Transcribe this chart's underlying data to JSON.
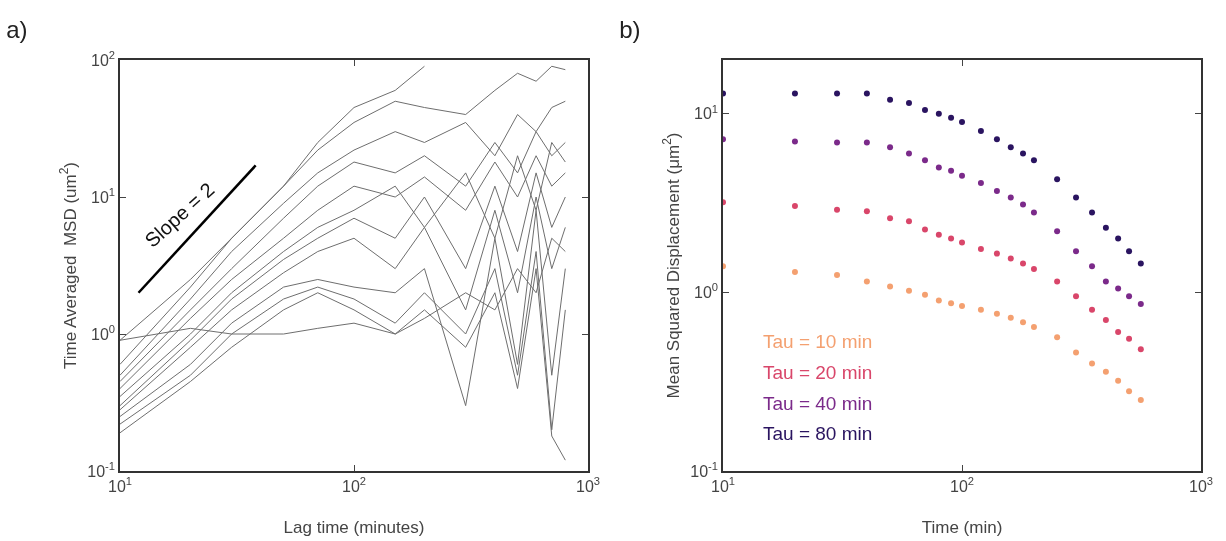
{
  "chart_data": [
    {
      "type": "line",
      "title": "a)",
      "xlabel": "Lag time (minutes)",
      "ylabel": "Time Averaged  MSD (um$^{2}$)",
      "log": "xy",
      "xlim": [
        10,
        1000
      ],
      "ylim": [
        0.1,
        100
      ],
      "xticks": [
        {
          "value": 10,
          "label": "10$^{1}$"
        },
        {
          "value": 100,
          "label": "10$^{2}$"
        },
        {
          "value": 1000,
          "label": "10$^{3}$"
        }
      ],
      "yticks": [
        {
          "value": 0.1,
          "label": "10$^{-1}$"
        },
        {
          "value": 1,
          "label": "10$^{0}$"
        },
        {
          "value": 10,
          "label": "10$^{1}$"
        },
        {
          "value": 100,
          "label": "10$^{2}$"
        }
      ],
      "grid": false,
      "legend": false,
      "marker": "none",
      "line_style": "solid",
      "x": [
        10,
        20,
        30,
        50,
        70,
        100,
        150,
        200,
        300,
        400,
        500,
        600,
        700,
        800
      ],
      "series": [
        {
          "color": "#6e6e6e",
          "values": [
            0.9,
            2.5,
            5,
            12,
            25,
            45,
            60,
            90,
            null,
            null,
            null,
            null,
            null,
            null
          ]
        },
        {
          "color": "#6e6e6e",
          "values": [
            0.6,
            2.2,
            5,
            12,
            22,
            35,
            50,
            45,
            40,
            60,
            80,
            70,
            90,
            85
          ]
        },
        {
          "color": "#6e6e6e",
          "values": [
            0.5,
            1.8,
            4,
            9,
            15,
            22,
            30,
            25,
            35,
            20,
            40,
            30,
            45,
            50
          ]
        },
        {
          "color": "#6e6e6e",
          "values": [
            0.45,
            1.5,
            3,
            7,
            12,
            18,
            15,
            20,
            12,
            25,
            15,
            30,
            20,
            25
          ]
        },
        {
          "color": "#6e6e6e",
          "values": [
            0.4,
            1.3,
            2.5,
            5,
            8,
            12,
            10,
            14,
            8,
            18,
            10,
            20,
            12,
            15
          ]
        },
        {
          "color": "#6e6e6e",
          "values": [
            0.35,
            1.0,
            2.0,
            4,
            6,
            8,
            12,
            6,
            15,
            5,
            20,
            8,
            25,
            18
          ]
        },
        {
          "color": "#6e6e6e",
          "values": [
            0.3,
            0.9,
            1.8,
            3.5,
            5,
            7,
            5,
            10,
            3,
            12,
            4,
            15,
            6,
            10
          ]
        },
        {
          "color": "#6e6e6e",
          "values": [
            0.28,
            0.8,
            1.5,
            2.8,
            4,
            5,
            3,
            6,
            1.5,
            8,
            2,
            10,
            3,
            6
          ]
        },
        {
          "color": "#6e6e6e",
          "values": [
            0.25,
            0.6,
            1.2,
            2.2,
            2.5,
            2.2,
            2,
            3,
            0.3,
            5,
            0.6,
            8,
            0.5,
            3
          ]
        },
        {
          "color": "#6e6e6e",
          "values": [
            0.22,
            0.5,
            1.0,
            1.8,
            2.2,
            1.8,
            1.2,
            2,
            1.0,
            3,
            0.5,
            4,
            0.2,
            1.5
          ]
        },
        {
          "color": "#6e6e6e",
          "values": [
            0.19,
            0.45,
            0.8,
            1.5,
            2.0,
            1.5,
            1.0,
            1.5,
            0.8,
            2,
            0.4,
            3,
            0.18,
            0.12
          ]
        },
        {
          "color": "#6e6e6e",
          "values": [
            0.9,
            1.1,
            1.0,
            1.0,
            1.1,
            1.2,
            1.0,
            1.3,
            2,
            1.5,
            3,
            2,
            5,
            4
          ]
        },
        {
          "color": "#000000",
          "x": [
            12,
            38
          ],
          "values": [
            2,
            17
          ]
        }
      ],
      "annotations": [
        {
          "text": "Slope = 2",
          "x": 21,
          "y": 5.65
        }
      ]
    },
    {
      "type": "scatter",
      "title": "b)",
      "xlabel": "Time (min)",
      "ylabel": "Mean Squared Displacement (μm$^{2}$)",
      "log": "xy",
      "xlim": [
        10,
        1000
      ],
      "ylim": [
        0.1,
        20
      ],
      "xticks": [
        {
          "value": 10,
          "label": "10$^{1}$"
        },
        {
          "value": 100,
          "label": "10$^{2}$"
        },
        {
          "value": 1000,
          "label": "10$^{3}$"
        }
      ],
      "yticks": [
        {
          "value": 0.1,
          "label": "10$^{-1}$"
        },
        {
          "value": 1,
          "label": "10$^{0}$"
        },
        {
          "value": 10,
          "label": "10$^{1}$"
        }
      ],
      "grid": false,
      "legend": "bottom left",
      "marker": "circle",
      "x": [
        10,
        20,
        30,
        40,
        50,
        60,
        70,
        80,
        90,
        100,
        120,
        140,
        160,
        180,
        200,
        250,
        300,
        350,
        400,
        450,
        500,
        560
      ],
      "series": [
        {
          "name": "Tau = 10 min",
          "color": "#f4a070",
          "values": [
            1.4,
            1.3,
            1.25,
            1.15,
            1.08,
            1.02,
            0.97,
            0.9,
            0.87,
            0.84,
            0.8,
            0.76,
            0.72,
            0.68,
            0.64,
            0.56,
            0.46,
            0.4,
            0.36,
            0.32,
            0.28,
            0.25
          ]
        },
        {
          "name": "Tau = 20 min",
          "color": "#d9466a",
          "values": [
            3.2,
            3.05,
            2.9,
            2.85,
            2.6,
            2.5,
            2.25,
            2.1,
            2.0,
            1.9,
            1.75,
            1.65,
            1.55,
            1.45,
            1.35,
            1.15,
            0.95,
            0.8,
            0.7,
            0.6,
            0.55,
            0.48
          ]
        },
        {
          "name": "Tau = 40 min",
          "color": "#7b2a8a",
          "values": [
            7.2,
            7,
            6.9,
            6.9,
            6.5,
            6,
            5.5,
            5,
            4.8,
            4.5,
            4.1,
            3.7,
            3.4,
            3.1,
            2.8,
            2.2,
            1.7,
            1.4,
            1.15,
            1.05,
            0.95,
            0.86
          ]
        },
        {
          "name": "Tau = 80 min",
          "color": "#2a1460",
          "values": [
            13,
            13,
            13,
            13,
            12,
            11.5,
            10.5,
            10,
            9.5,
            9,
            8,
            7.2,
            6.5,
            6,
            5.5,
            4.3,
            3.4,
            2.8,
            2.3,
            2.0,
            1.7,
            1.45
          ]
        }
      ]
    }
  ]
}
